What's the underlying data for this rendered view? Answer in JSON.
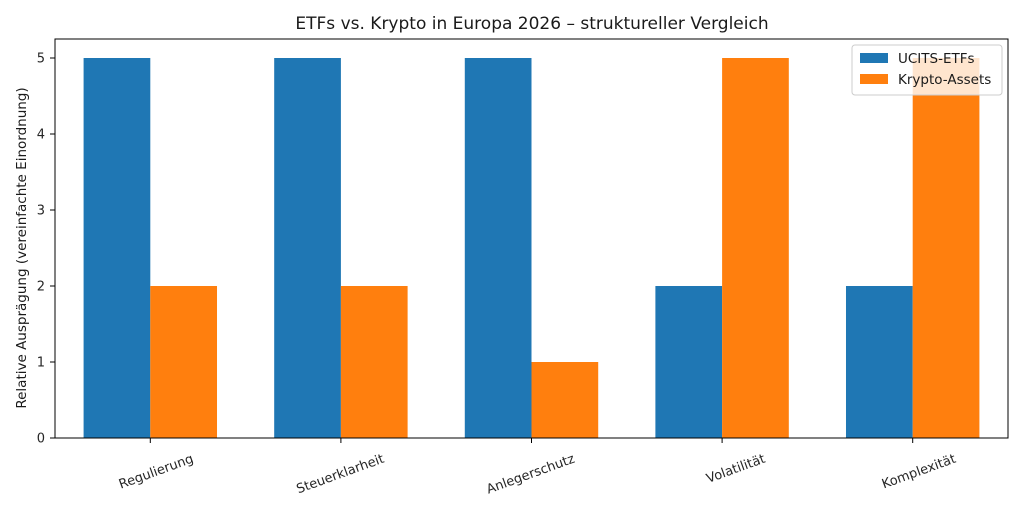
{
  "chart_data": {
    "type": "bar",
    "title": "ETFs vs. Krypto in Europa 2026 – struktureller Vergleich",
    "xlabel": "",
    "ylabel": "Relative Ausprägung (vereinfachte Einordnung)",
    "categories": [
      "Regulierung",
      "Steuerklarheit",
      "Anlegerschutz",
      "Volatilität",
      "Komplexität"
    ],
    "series": [
      {
        "name": "UCITS-ETFs",
        "values": [
          5,
          5,
          5,
          2,
          2
        ],
        "color": "#1f77b4"
      },
      {
        "name": "Krypto-Assets",
        "values": [
          2,
          2,
          1,
          5,
          5
        ],
        "color": "#ff7f0e"
      }
    ],
    "ylim": [
      0,
      5.25
    ],
    "yticks": [
      0,
      1,
      2,
      3,
      4,
      5
    ],
    "grid": false,
    "legend_position": "top-right"
  }
}
